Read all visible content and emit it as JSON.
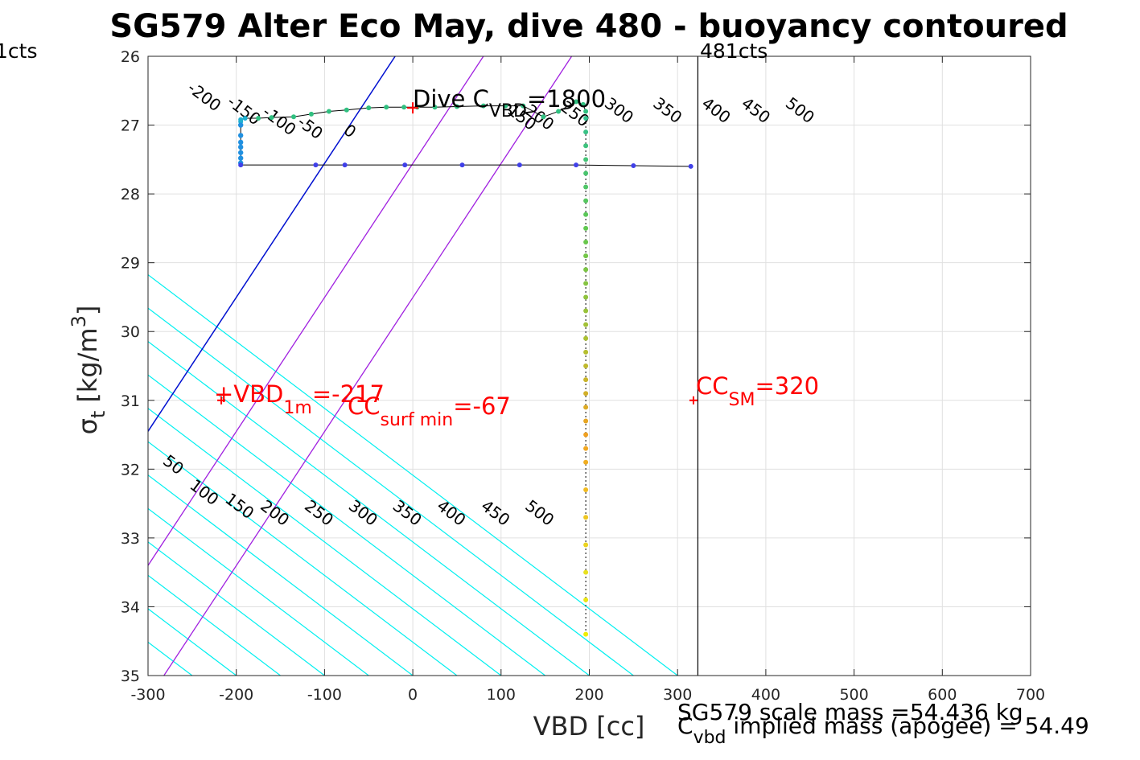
{
  "chart_data": {
    "type": "scatter",
    "title": "SG579 Alter Eco May, dive 480 - buoyancy contoured",
    "xlabel": "VBD [cc]",
    "ylabel_sym": "σ",
    "ylabel_sub": "t",
    "ylabel_unit": "[kg/m",
    "ylabel_sup": "3",
    "ylabel_close": "]",
    "xlim": [
      -300,
      700
    ],
    "ylim": [
      26,
      35
    ],
    "y_reversed": true,
    "grid": true,
    "x_ticks": [
      -300,
      -200,
      -100,
      0,
      100,
      200,
      300,
      400,
      500,
      600,
      700
    ],
    "y_ticks": [
      26,
      27,
      28,
      29,
      30,
      31,
      32,
      33,
      34,
      35
    ],
    "corner_labels": {
      "left": "1cts",
      "right": "481cts"
    },
    "vertical_line_x": 323,
    "diag_slope_cc_per_sigma": 103,
    "contours_upper": [
      {
        "v": -200,
        "label": "-200",
        "x": -240,
        "y": 26.65
      },
      {
        "v": -150,
        "label": "-150",
        "x": -195,
        "y": 26.85
      },
      {
        "v": -100,
        "label": "-100",
        "x": -155,
        "y": 27.0
      },
      {
        "v": -50,
        "label": "-50",
        "x": -120,
        "y": 27.1
      },
      {
        "v": 0,
        "label": "0",
        "x": -75,
        "y": 27.15
      },
      {
        "v": 50,
        "label": "",
        "x": 0,
        "y": 0
      },
      {
        "v": 100,
        "label": "",
        "x": 0,
        "y": 0
      },
      {
        "v": 150,
        "label": "150",
        "x": 120,
        "y": 26.95
      },
      {
        "v": 200,
        "label": "200",
        "x": 140,
        "y": 26.95
      },
      {
        "v": 250,
        "label": "250",
        "x": 180,
        "y": 26.9
      },
      {
        "v": 300,
        "label": "300",
        "x": 230,
        "y": 26.85
      },
      {
        "v": 350,
        "label": "350",
        "x": 285,
        "y": 26.85
      },
      {
        "v": 400,
        "label": "400",
        "x": 340,
        "y": 26.85
      },
      {
        "v": 450,
        "label": "450",
        "x": 385,
        "y": 26.85
      },
      {
        "v": 500,
        "label": "500",
        "x": 435,
        "y": 26.85
      }
    ],
    "contours_lower": [
      {
        "v": 50,
        "label": "50",
        "x": -275,
        "y": 32.0
      },
      {
        "v": 100,
        "label": "100",
        "x": -240,
        "y": 32.4
      },
      {
        "v": 150,
        "label": "150",
        "x": -200,
        "y": 32.6
      },
      {
        "v": 200,
        "label": "200",
        "x": -160,
        "y": 32.7
      },
      {
        "v": 250,
        "label": "250",
        "x": -110,
        "y": 32.7
      },
      {
        "v": 300,
        "label": "300",
        "x": -60,
        "y": 32.7
      },
      {
        "v": 350,
        "label": "350",
        "x": -10,
        "y": 32.7
      },
      {
        "v": 400,
        "label": "400",
        "x": 40,
        "y": 32.7
      },
      {
        "v": 450,
        "label": "450",
        "x": 90,
        "y": 32.7
      },
      {
        "v": 500,
        "label": "500",
        "x": 140,
        "y": 32.7
      }
    ],
    "blue_line": {
      "x1": -300,
      "y1": 31.45,
      "x2": -20,
      "y2": 26.0
    },
    "purple_lines": [
      {
        "x1": -300,
        "y1": 33.4,
        "x2": 80,
        "y2": 26.0
      },
      {
        "x1": -282,
        "y1": 35.0,
        "x2": 180,
        "y2": 26.0
      }
    ],
    "markers": [
      {
        "x": -217,
        "y": 31.0
      },
      {
        "x": 318,
        "y": 31.0
      },
      {
        "x": 0,
        "y": 26.75
      }
    ],
    "annotations": {
      "vbd_1m": {
        "prefix": "+VBD",
        "sub": "1m",
        "value": "=-217"
      },
      "cc_surf_min": {
        "prefix": "CC",
        "sub": "surf min",
        "value": "=-67"
      },
      "cc_sm": {
        "prefix": "CC",
        "sub": "SM",
        "value": "=320"
      },
      "dive_c_vbd": {
        "prefix": "Dive C",
        "sub": "VBD",
        "value": "=1800"
      }
    },
    "footer": {
      "line1": "SG579 scale mass =54.436 kg",
      "line2_prefix": "C",
      "line2_sub": "vbd",
      "line2_rest": " implied mass (apogee) = 54.49"
    },
    "series": [
      {
        "kind": "dive_top",
        "x": [
          -195,
          -195,
          -195,
          -190,
          -175,
          -160,
          -135,
          -115,
          -95,
          -75,
          -50,
          -30,
          -10,
          5,
          25,
          50,
          80,
          105,
          125,
          148,
          165,
          185,
          193,
          196
        ],
        "y": [
          27.0,
          26.95,
          26.92,
          26.9,
          26.9,
          26.89,
          26.88,
          26.84,
          26.8,
          26.78,
          26.75,
          26.74,
          26.74,
          26.74,
          26.74,
          26.73,
          26.72,
          26.72,
          26.72,
          26.88,
          26.8,
          26.66,
          26.7,
          26.8
        ]
      },
      {
        "kind": "dive_profile",
        "x": [
          196,
          196,
          196,
          196,
          196,
          196,
          196,
          196,
          196,
          196,
          196,
          196,
          196,
          196,
          196,
          196,
          196,
          196,
          196,
          196,
          196,
          196,
          196,
          196,
          196,
          196,
          196,
          196,
          196,
          196,
          196,
          196
        ],
        "y": [
          26.9,
          27.1,
          27.3,
          27.5,
          27.7,
          27.9,
          28.1,
          28.3,
          28.5,
          28.7,
          28.9,
          29.1,
          29.3,
          29.5,
          29.7,
          29.9,
          30.1,
          30.3,
          30.5,
          30.7,
          30.9,
          31.1,
          31.3,
          31.5,
          31.7,
          31.9,
          32.3,
          32.7,
          33.1,
          33.5,
          33.9,
          34.4
        ]
      },
      {
        "kind": "left_column",
        "x": [
          -195,
          -195,
          -195,
          -195,
          -195,
          -195,
          -195
        ],
        "y": [
          27.0,
          27.15,
          27.25,
          27.32,
          27.4,
          27.48,
          27.55
        ]
      },
      {
        "kind": "climb",
        "x": [
          -195,
          -110,
          -77,
          -9,
          56,
          121,
          185,
          250,
          315
        ],
        "y": [
          27.58,
          27.58,
          27.58,
          27.58,
          27.58,
          27.58,
          27.58,
          27.59,
          27.6
        ]
      }
    ],
    "colors": {
      "cyan": "#00f0f0",
      "blue": "#0010d0",
      "purple": "#a020e0",
      "red": "#ff0000",
      "grid": "#e0e0e0",
      "climb": "#4040e8"
    }
  }
}
